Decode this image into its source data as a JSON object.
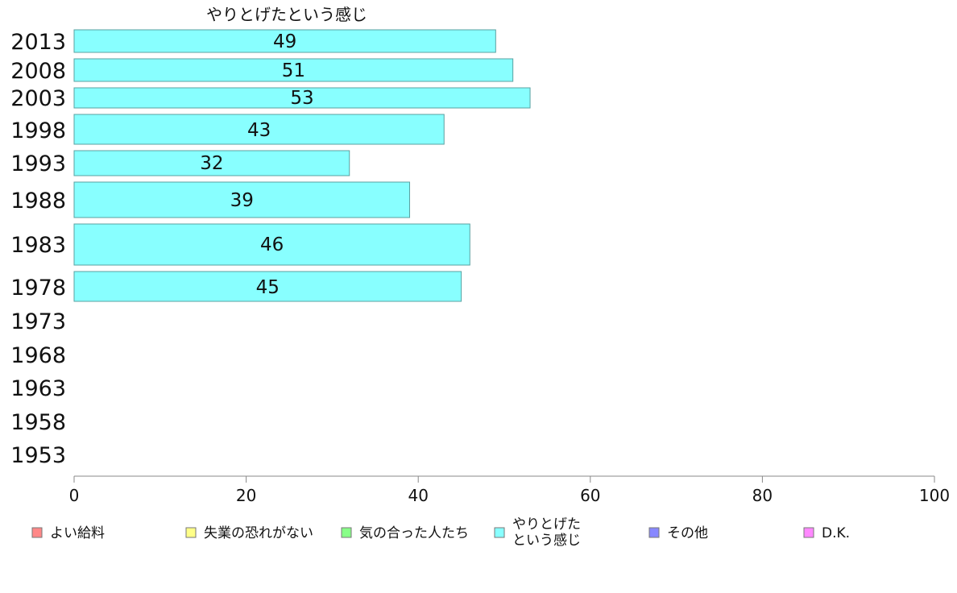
{
  "chart_data": {
    "type": "bar",
    "orientation": "horizontal",
    "title": "やりとげたという感じ",
    "categories": [
      "2013",
      "2008",
      "2003",
      "1998",
      "1993",
      "1988",
      "1983",
      "1978",
      "1973",
      "1968",
      "1963",
      "1958",
      "1953"
    ],
    "series": [
      {
        "name": "やりとげたという感じ",
        "color": "#88ffff",
        "values": [
          49,
          51,
          53,
          43,
          32,
          39,
          46,
          45,
          null,
          null,
          null,
          null,
          null
        ]
      }
    ],
    "xlim": [
      0,
      100
    ],
    "xticks": [
      "0",
      "20",
      "40",
      "60",
      "80",
      "100"
    ],
    "grid": false,
    "legend": {
      "placement": "bottom",
      "items": [
        {
          "label": "よい給料",
          "color": "#ff8888"
        },
        {
          "label": "失業の恐れがない",
          "color": "#ffff88"
        },
        {
          "label": "気の合った人たち",
          "color": "#88ff88"
        },
        {
          "label": "やりとげた\nという感じ",
          "color": "#88ffff"
        },
        {
          "label": "その他",
          "color": "#8888ff"
        },
        {
          "label": "D.K.",
          "color": "#ff88ff"
        }
      ]
    }
  }
}
